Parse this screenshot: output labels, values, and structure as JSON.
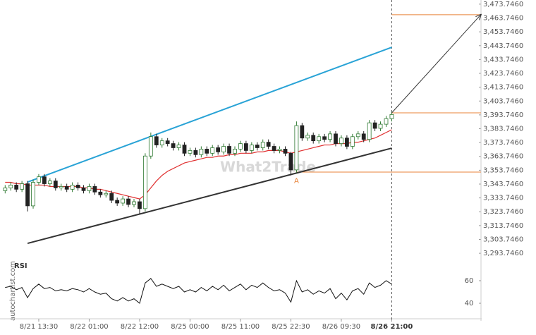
{
  "chart_data": {
    "type": "candlestick",
    "watermark": "What2Trade",
    "source": "autochartist.com",
    "pattern_label": "A",
    "indicator_title": "RSI",
    "categories": [
      null,
      null,
      null,
      null,
      null,
      null,
      "8/21 13:30",
      null,
      null,
      null,
      null,
      null,
      null,
      null,
      null,
      "8/22 01:00",
      null,
      null,
      null,
      null,
      null,
      null,
      null,
      null,
      "8/22 12:00",
      null,
      null,
      null,
      null,
      null,
      null,
      null,
      null,
      "8/25 00:00",
      null,
      null,
      null,
      null,
      null,
      null,
      null,
      null,
      "8/25 11:00",
      null,
      null,
      null,
      null,
      null,
      null,
      null,
      null,
      "8/25 22:30",
      null,
      null,
      null,
      null,
      null,
      null,
      null,
      null,
      "8/26 09:30",
      null,
      null,
      null,
      null,
      null,
      null,
      null,
      null,
      "8/26 21:00"
    ],
    "ohlc": [
      [
        3339,
        3343,
        3337,
        3341
      ],
      [
        3341,
        3345,
        3339,
        3343
      ],
      [
        3343,
        3345,
        3338,
        3340
      ],
      [
        3340,
        3346,
        3338,
        3344
      ],
      [
        3344,
        3346,
        3324,
        3328
      ],
      [
        3328,
        3347,
        3326,
        3345
      ],
      [
        3345,
        3351,
        3343,
        3349
      ],
      [
        3349,
        3351,
        3342,
        3344
      ],
      [
        3344,
        3348,
        3342,
        3346
      ],
      [
        3346,
        3348,
        3339,
        3341
      ],
      [
        3341,
        3344,
        3339,
        3342
      ],
      [
        3342,
        3344,
        3338,
        3340
      ],
      [
        3340,
        3345,
        3338,
        3343
      ],
      [
        3343,
        3345,
        3339,
        3341
      ],
      [
        3341,
        3343,
        3337,
        3339
      ],
      [
        3339,
        3344,
        3337,
        3342
      ],
      [
        3342,
        3344,
        3336,
        3338
      ],
      [
        3338,
        3340,
        3334,
        3336
      ],
      [
        3336,
        3339,
        3334,
        3337
      ],
      [
        3337,
        3339,
        3330,
        3332
      ],
      [
        3332,
        3334,
        3328,
        3330
      ],
      [
        3330,
        3335,
        3328,
        3333
      ],
      [
        3333,
        3335,
        3327,
        3329
      ],
      [
        3329,
        3333,
        3327,
        3331
      ],
      [
        3331,
        3333,
        3322,
        3326
      ],
      [
        3326,
        3366,
        3324,
        3364
      ],
      [
        3364,
        3381,
        3362,
        3378
      ],
      [
        3378,
        3380,
        3370,
        3372
      ],
      [
        3372,
        3377,
        3370,
        3375
      ],
      [
        3375,
        3377,
        3371,
        3373
      ],
      [
        3373,
        3375,
        3368,
        3370
      ],
      [
        3370,
        3374,
        3368,
        3372
      ],
      [
        3372,
        3374,
        3364,
        3366
      ],
      [
        3366,
        3370,
        3364,
        3368
      ],
      [
        3368,
        3370,
        3363,
        3365
      ],
      [
        3365,
        3371,
        3363,
        3369
      ],
      [
        3369,
        3371,
        3364,
        3366
      ],
      [
        3366,
        3372,
        3364,
        3370
      ],
      [
        3370,
        3372,
        3365,
        3367
      ],
      [
        3367,
        3373,
        3365,
        3371
      ],
      [
        3371,
        3373,
        3364,
        3366
      ],
      [
        3366,
        3371,
        3364,
        3369
      ],
      [
        3369,
        3375,
        3367,
        3373
      ],
      [
        3373,
        3375,
        3366,
        3368
      ],
      [
        3368,
        3374,
        3366,
        3372
      ],
      [
        3372,
        3374,
        3368,
        3370
      ],
      [
        3370,
        3376,
        3368,
        3374
      ],
      [
        3374,
        3376,
        3369,
        3371
      ],
      [
        3371,
        3373,
        3366,
        3368
      ],
      [
        3368,
        3371,
        3366,
        3369
      ],
      [
        3369,
        3371,
        3364,
        3366
      ],
      [
        3366,
        3367,
        3350,
        3354
      ],
      [
        3354,
        3389,
        3352,
        3386
      ],
      [
        3386,
        3388,
        3375,
        3377
      ],
      [
        3377,
        3381,
        3375,
        3379
      ],
      [
        3379,
        3381,
        3373,
        3375
      ],
      [
        3375,
        3380,
        3373,
        3378
      ],
      [
        3378,
        3380,
        3374,
        3376
      ],
      [
        3376,
        3382,
        3374,
        3380
      ],
      [
        3380,
        3382,
        3371,
        3373
      ],
      [
        3373,
        3379,
        3371,
        3377
      ],
      [
        3377,
        3379,
        3369,
        3371
      ],
      [
        3371,
        3380,
        3369,
        3378
      ],
      [
        3378,
        3382,
        3376,
        3380
      ],
      [
        3380,
        3382,
        3374,
        3376
      ],
      [
        3376,
        3390,
        3374,
        3388
      ],
      [
        3388,
        3390,
        3382,
        3384
      ],
      [
        3384,
        3389,
        3382,
        3387
      ],
      [
        3387,
        3393,
        3385,
        3391
      ],
      [
        3391,
        3396,
        3389,
        3394
      ]
    ],
    "up_color": "#2f7a32",
    "down_color": "#222222",
    "ma": {
      "color": "#e03030",
      "values": [
        3345,
        3345,
        3344,
        3344,
        3343,
        3343,
        3343,
        3343,
        3342,
        3342,
        3342,
        3342,
        3342,
        3342,
        3341,
        3341,
        3340,
        3340,
        3339,
        3338,
        3337,
        3336,
        3335,
        3334,
        3333,
        3336,
        3341,
        3346,
        3350,
        3353,
        3355,
        3357,
        3359,
        3360,
        3361,
        3362,
        3363,
        3363,
        3364,
        3364,
        3365,
        3365,
        3366,
        3366,
        3366,
        3367,
        3367,
        3368,
        3368,
        3368,
        3367,
        3366,
        3367,
        3368,
        3369,
        3370,
        3371,
        3372,
        3372,
        3373,
        3373,
        3373,
        3374,
        3374,
        3375,
        3376,
        3377,
        3379,
        3381,
        3383
      ]
    },
    "trendlines": [
      {
        "from": [
          4,
          3345.2
        ],
        "to": [
          69,
          3442.6
        ],
        "color": "#29a3d6"
      },
      {
        "from": [
          4,
          3300.9
        ],
        "to": [
          69,
          3369.7
        ],
        "color": "#333333"
      }
    ],
    "levels": [
      {
        "value": 3466.1,
        "from": 69,
        "color": "#e8833a"
      },
      {
        "value": 3395.2,
        "from": 69,
        "color": "#e8833a"
      },
      {
        "value": 3352.4,
        "from": 52,
        "color": "#e8833a"
      }
    ],
    "arrow": {
      "from": [
        69,
        3395.2
      ],
      "to": [
        85,
        3466.6
      ],
      "color": "#333333"
    },
    "pattern_point": [
      52,
      3346
    ],
    "ylim": [
      3290.746,
      3476.746
    ],
    "yticks": [
      {
        "value": 3473.746,
        "label": "3,473.7460"
      },
      {
        "value": 3463.746,
        "label": "3,463.7460"
      },
      {
        "value": 3453.746,
        "label": "3,453.7460"
      },
      {
        "value": 3443.746,
        "label": "3,443.7460"
      },
      {
        "value": 3433.746,
        "label": "3,433.7460"
      },
      {
        "value": 3423.746,
        "label": "3,423.7460"
      },
      {
        "value": 3413.746,
        "label": "3,413.7460"
      },
      {
        "value": 3403.746,
        "label": "3,403.7460"
      },
      {
        "value": 3393.746,
        "label": "3,393.7460"
      },
      {
        "value": 3383.746,
        "label": "3,383.7460"
      },
      {
        "value": 3373.746,
        "label": "3,373.7460"
      },
      {
        "value": 3363.746,
        "label": "3,363.7460"
      },
      {
        "value": 3353.746,
        "label": "3,353.7460"
      },
      {
        "value": 3343.746,
        "label": "3,343.7460"
      },
      {
        "value": 3333.746,
        "label": "3,333.7460"
      },
      {
        "value": 3323.746,
        "label": "3,323.7460"
      },
      {
        "value": 3313.746,
        "label": "3,313.7460"
      },
      {
        "value": 3303.746,
        "label": "3,303.7460"
      },
      {
        "value": 3293.746,
        "label": "3,293.7460"
      }
    ],
    "rsi": {
      "values": [
        54,
        55,
        52,
        54,
        45,
        53,
        57,
        53,
        54,
        51,
        52,
        51,
        53,
        52,
        50,
        53,
        50,
        48,
        49,
        44,
        42,
        45,
        42,
        44,
        40,
        58,
        62,
        55,
        57,
        55,
        53,
        55,
        50,
        52,
        50,
        54,
        51,
        55,
        52,
        56,
        51,
        54,
        57,
        52,
        56,
        54,
        58,
        54,
        51,
        52,
        49,
        41,
        60,
        50,
        52,
        48,
        51,
        49,
        53,
        44,
        49,
        43,
        51,
        53,
        48,
        58,
        54,
        56,
        60,
        57
      ],
      "ylim": [
        25,
        75
      ],
      "yticks": [
        40,
        60
      ]
    }
  }
}
